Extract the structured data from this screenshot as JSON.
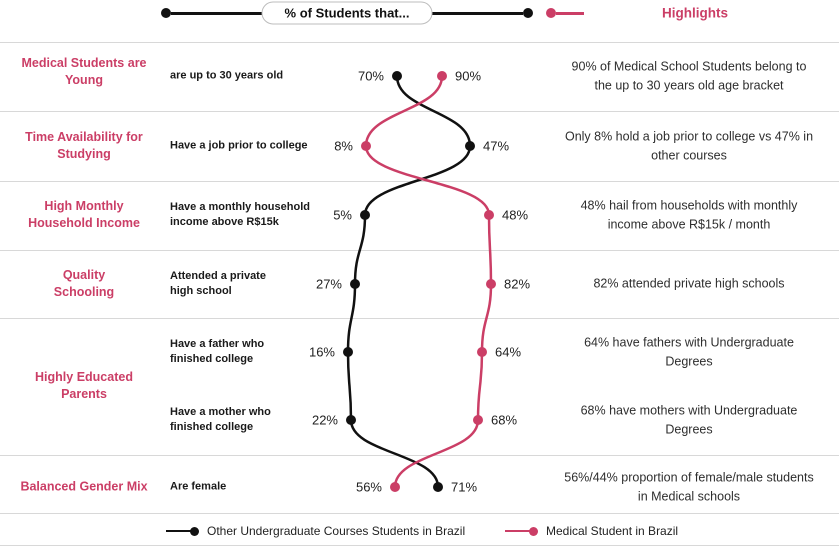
{
  "header": {
    "axis_label": "% of Students that...",
    "highlights_label": "Highlights"
  },
  "categories": [
    "Medical Students are\nYoung",
    "Time Availability for\nStudying",
    "High Monthly\nHousehold Income",
    "Quality\nSchooling",
    "Highly Educated\nParents",
    "Balanced Gender Mix"
  ],
  "metrics": [
    "are up to 30 years old",
    "Have a job prior to college",
    "Have a monthly household\nincome above R$15k",
    "Attended a private\nhigh school",
    "Have a father who\nfinished college",
    "Have a mother who\nfinished college",
    "Are female"
  ],
  "highlights": [
    "90% of Medical School Students belong to\nthe up to 30 years old age bracket",
    "Only 8% hold a job prior to college vs 47% in\nother courses",
    "48% hail from households with monthly\nincome above R$15k / month",
    "82% attended private high schools",
    "64% have fathers with Undergraduate\nDegrees",
    "68% have mothers with Undergraduate\nDegrees",
    "56%/44% proportion of female/male students\nin Medical schools"
  ],
  "legend": [
    {
      "label": "Other Undergraduate Courses Students in Brazil",
      "color": "#111111"
    },
    {
      "label": "Medical Student in Brazil",
      "color": "#cb3e66"
    }
  ],
  "colors": {
    "accent": "#cb3e66",
    "other_series": "#111111",
    "divider": "#d8d8d8"
  },
  "chart_data": {
    "type": "line",
    "title": "% of Students that...",
    "categories": [
      "are up to 30 years old",
      "Have a job prior to college",
      "Have a monthly household income above R$15k",
      "Attended a private high school",
      "Have a father who finished college",
      "Have a mother who finished college",
      "Are female"
    ],
    "series": [
      {
        "name": "Other Undergraduate Courses Students in Brazil",
        "color": "#111111",
        "values": [
          70,
          47,
          5,
          27,
          16,
          22,
          71
        ]
      },
      {
        "name": "Medical Student in Brazil",
        "color": "#cb3e66",
        "values": [
          90,
          8,
          48,
          82,
          64,
          68,
          56
        ]
      }
    ],
    "value_format": "percent",
    "value_range": [
      0,
      100
    ],
    "legend_position": "bottom",
    "orientation": "vertical"
  }
}
